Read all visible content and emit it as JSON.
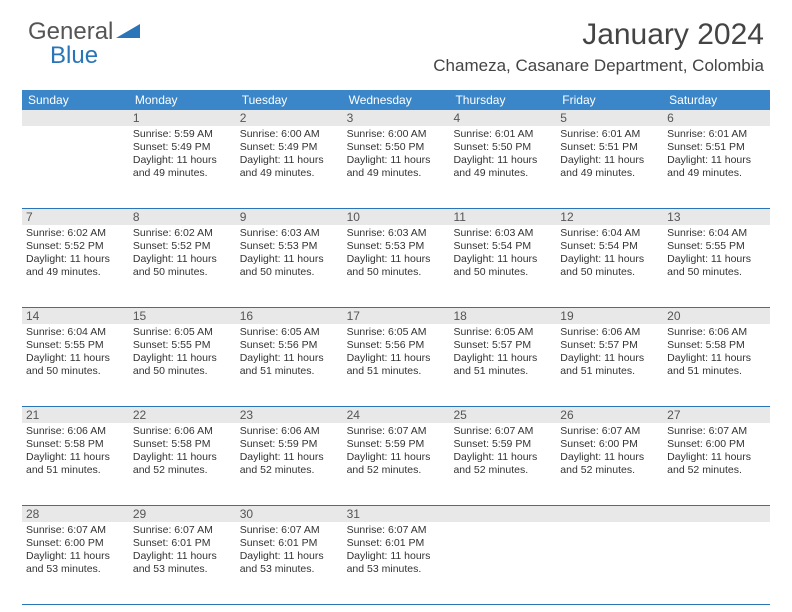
{
  "logo": {
    "text1": "General",
    "text2": "Blue"
  },
  "title": "January 2024",
  "location": "Chameza, Casanare Department, Colombia",
  "weekdays": [
    "Sunday",
    "Monday",
    "Tuesday",
    "Wednesday",
    "Thursday",
    "Friday",
    "Saturday"
  ],
  "colors": {
    "header_bar": "#3a86c8",
    "daynum_bg": "#e8e8e8",
    "border": "#2a74b8",
    "logo_blue": "#2a74b8"
  },
  "weeks": [
    {
      "nums": [
        "",
        "1",
        "2",
        "3",
        "4",
        "5",
        "6"
      ],
      "cells": [
        [],
        [
          "Sunrise: 5:59 AM",
          "Sunset: 5:49 PM",
          "Daylight: 11 hours",
          "and 49 minutes."
        ],
        [
          "Sunrise: 6:00 AM",
          "Sunset: 5:49 PM",
          "Daylight: 11 hours",
          "and 49 minutes."
        ],
        [
          "Sunrise: 6:00 AM",
          "Sunset: 5:50 PM",
          "Daylight: 11 hours",
          "and 49 minutes."
        ],
        [
          "Sunrise: 6:01 AM",
          "Sunset: 5:50 PM",
          "Daylight: 11 hours",
          "and 49 minutes."
        ],
        [
          "Sunrise: 6:01 AM",
          "Sunset: 5:51 PM",
          "Daylight: 11 hours",
          "and 49 minutes."
        ],
        [
          "Sunrise: 6:01 AM",
          "Sunset: 5:51 PM",
          "Daylight: 11 hours",
          "and 49 minutes."
        ]
      ]
    },
    {
      "nums": [
        "7",
        "8",
        "9",
        "10",
        "11",
        "12",
        "13"
      ],
      "cells": [
        [
          "Sunrise: 6:02 AM",
          "Sunset: 5:52 PM",
          "Daylight: 11 hours",
          "and 49 minutes."
        ],
        [
          "Sunrise: 6:02 AM",
          "Sunset: 5:52 PM",
          "Daylight: 11 hours",
          "and 50 minutes."
        ],
        [
          "Sunrise: 6:03 AM",
          "Sunset: 5:53 PM",
          "Daylight: 11 hours",
          "and 50 minutes."
        ],
        [
          "Sunrise: 6:03 AM",
          "Sunset: 5:53 PM",
          "Daylight: 11 hours",
          "and 50 minutes."
        ],
        [
          "Sunrise: 6:03 AM",
          "Sunset: 5:54 PM",
          "Daylight: 11 hours",
          "and 50 minutes."
        ],
        [
          "Sunrise: 6:04 AM",
          "Sunset: 5:54 PM",
          "Daylight: 11 hours",
          "and 50 minutes."
        ],
        [
          "Sunrise: 6:04 AM",
          "Sunset: 5:55 PM",
          "Daylight: 11 hours",
          "and 50 minutes."
        ]
      ]
    },
    {
      "nums": [
        "14",
        "15",
        "16",
        "17",
        "18",
        "19",
        "20"
      ],
      "cells": [
        [
          "Sunrise: 6:04 AM",
          "Sunset: 5:55 PM",
          "Daylight: 11 hours",
          "and 50 minutes."
        ],
        [
          "Sunrise: 6:05 AM",
          "Sunset: 5:55 PM",
          "Daylight: 11 hours",
          "and 50 minutes."
        ],
        [
          "Sunrise: 6:05 AM",
          "Sunset: 5:56 PM",
          "Daylight: 11 hours",
          "and 51 minutes."
        ],
        [
          "Sunrise: 6:05 AM",
          "Sunset: 5:56 PM",
          "Daylight: 11 hours",
          "and 51 minutes."
        ],
        [
          "Sunrise: 6:05 AM",
          "Sunset: 5:57 PM",
          "Daylight: 11 hours",
          "and 51 minutes."
        ],
        [
          "Sunrise: 6:06 AM",
          "Sunset: 5:57 PM",
          "Daylight: 11 hours",
          "and 51 minutes."
        ],
        [
          "Sunrise: 6:06 AM",
          "Sunset: 5:58 PM",
          "Daylight: 11 hours",
          "and 51 minutes."
        ]
      ]
    },
    {
      "nums": [
        "21",
        "22",
        "23",
        "24",
        "25",
        "26",
        "27"
      ],
      "cells": [
        [
          "Sunrise: 6:06 AM",
          "Sunset: 5:58 PM",
          "Daylight: 11 hours",
          "and 51 minutes."
        ],
        [
          "Sunrise: 6:06 AM",
          "Sunset: 5:58 PM",
          "Daylight: 11 hours",
          "and 52 minutes."
        ],
        [
          "Sunrise: 6:06 AM",
          "Sunset: 5:59 PM",
          "Daylight: 11 hours",
          "and 52 minutes."
        ],
        [
          "Sunrise: 6:07 AM",
          "Sunset: 5:59 PM",
          "Daylight: 11 hours",
          "and 52 minutes."
        ],
        [
          "Sunrise: 6:07 AM",
          "Sunset: 5:59 PM",
          "Daylight: 11 hours",
          "and 52 minutes."
        ],
        [
          "Sunrise: 6:07 AM",
          "Sunset: 6:00 PM",
          "Daylight: 11 hours",
          "and 52 minutes."
        ],
        [
          "Sunrise: 6:07 AM",
          "Sunset: 6:00 PM",
          "Daylight: 11 hours",
          "and 52 minutes."
        ]
      ]
    },
    {
      "nums": [
        "28",
        "29",
        "30",
        "31",
        "",
        "",
        ""
      ],
      "cells": [
        [
          "Sunrise: 6:07 AM",
          "Sunset: 6:00 PM",
          "Daylight: 11 hours",
          "and 53 minutes."
        ],
        [
          "Sunrise: 6:07 AM",
          "Sunset: 6:01 PM",
          "Daylight: 11 hours",
          "and 53 minutes."
        ],
        [
          "Sunrise: 6:07 AM",
          "Sunset: 6:01 PM",
          "Daylight: 11 hours",
          "and 53 minutes."
        ],
        [
          "Sunrise: 6:07 AM",
          "Sunset: 6:01 PM",
          "Daylight: 11 hours",
          "and 53 minutes."
        ],
        [],
        [],
        []
      ]
    }
  ]
}
